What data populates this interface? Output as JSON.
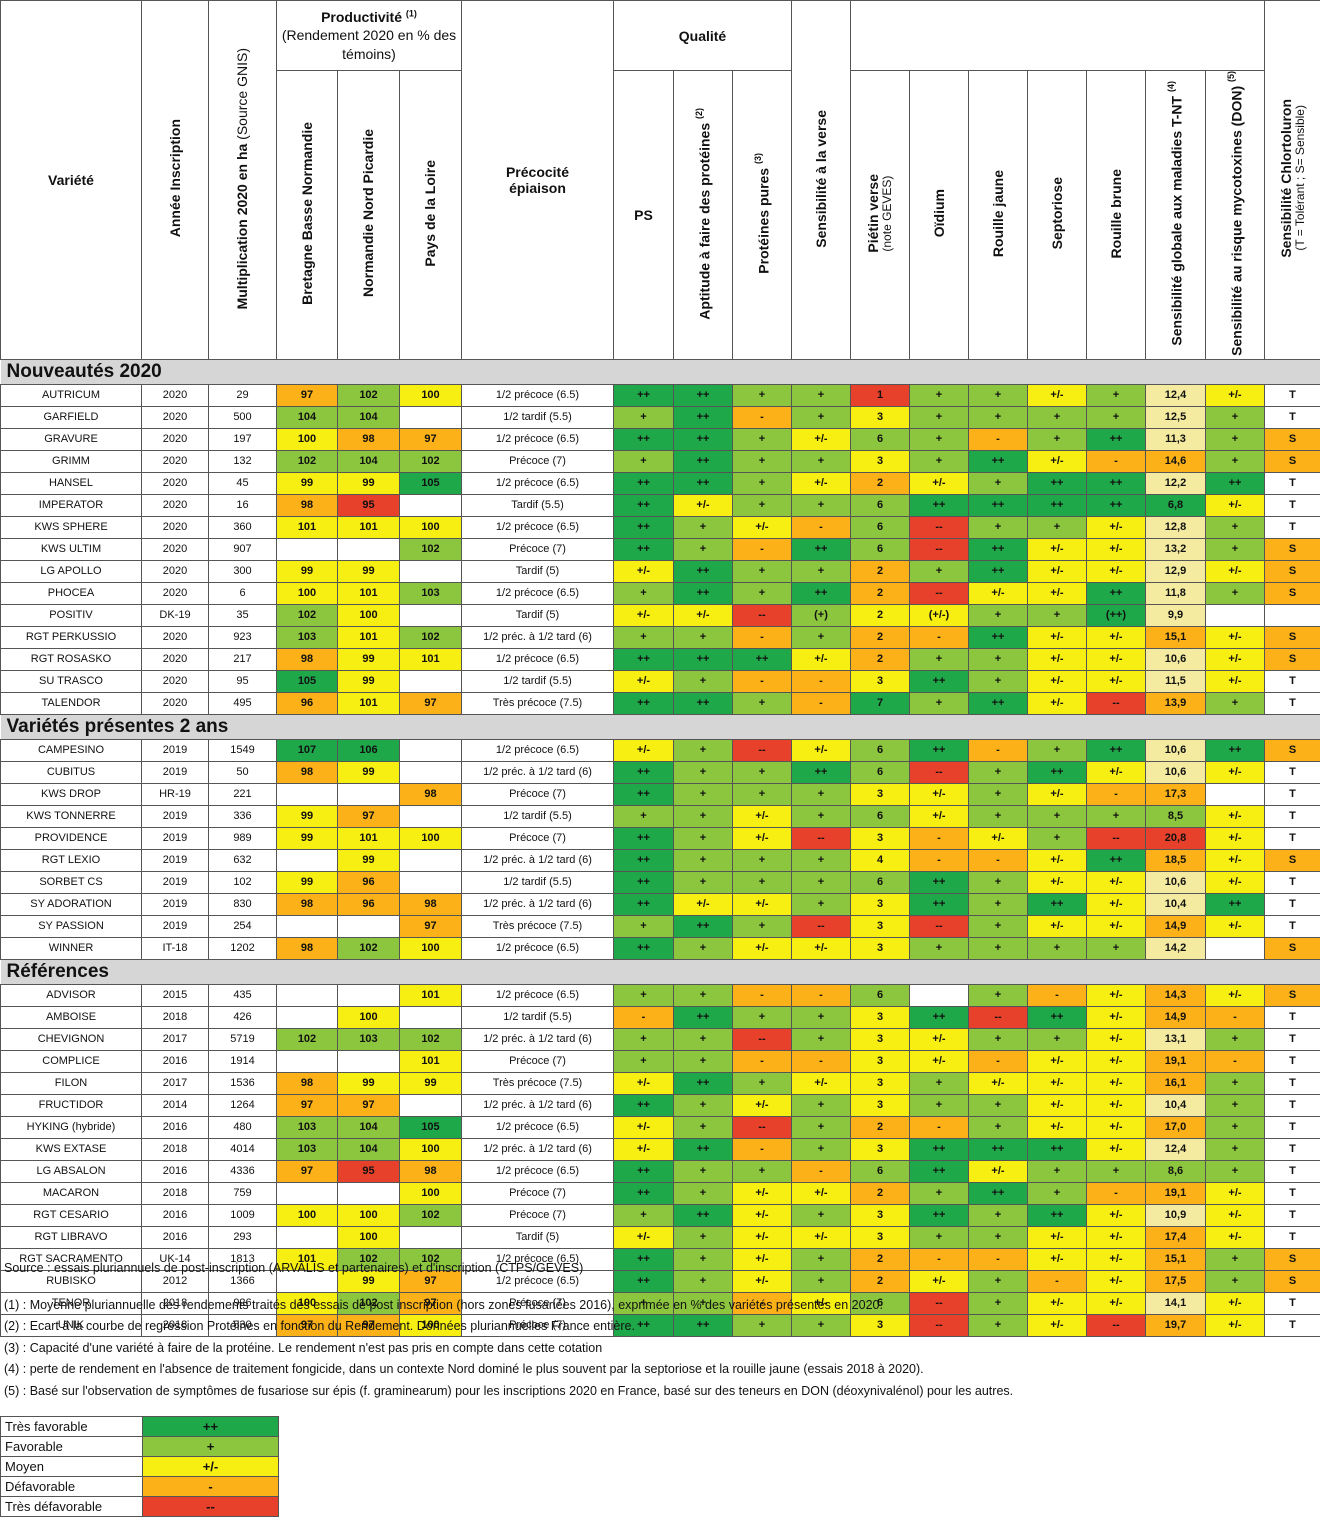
{
  "header": {
    "variete": "Variété",
    "annee": "Année Inscription",
    "multiplication": "Multiplication 2020 en ha",
    "multiplication_src": "(Source GNIS)",
    "productivite": "Productivité",
    "productivite_note": "(1)",
    "productivite_sub": "(Rendement 2020 en % des témoins)",
    "bretagne": "Bretagne Basse Normandie",
    "normandie": "Normandie Nord Picardie",
    "pays_loire": "Pays de la Loire",
    "precocite": "Précocité épiaison",
    "qualite": "Qualité",
    "ps": "PS",
    "aptitude": "Aptitude à faire des protéines",
    "aptitude_note": "(2)",
    "proteines": "Protéines pures",
    "proteines_note": "(3)",
    "verse": "Sensibilité à la verse",
    "pietin": "Piétin verse",
    "pietin_note": "(note GEVES)",
    "oidium": "Oïdium",
    "rouille_jaune": "Rouille jaune",
    "septoriose": "Septoriose",
    "rouille_brune": "Rouille brune",
    "sens_globale": "Sensibilité globale aux maladies T-NT",
    "sens_globale_note": "(4)",
    "mycotoxines": "Sensibilité au risque mycotoxines (DON)",
    "mycotoxines_note": "(5)",
    "chlortoluron": "Sensibilité Chlortoluron",
    "chlortoluron_sub": "(T = Tolérant ; S= Sensible)"
  },
  "legend_colors": {
    "dg": "#1fa84a",
    "lg": "#8cc63e",
    "yl": "#f7ee12",
    "or": "#fbb117",
    "rd": "#e8412b",
    "pe": "#f4eba0"
  },
  "sections": [
    {
      "title": "Nouveautés 2020",
      "rows": [
        [
          "AUTRICUM",
          "2020",
          "29",
          "97:or",
          "102:lg",
          "100:yl",
          "1/2 précoce (6.5)",
          "++:dg",
          "++:dg",
          "+:lg",
          "+:lg",
          "1:rd",
          "+:lg",
          "+:lg",
          "+/-:yl",
          "+:lg",
          "12,4:pe",
          "+/-:yl",
          "T:wh"
        ],
        [
          "GARFIELD",
          "2020",
          "500",
          "104:lg",
          "104:lg",
          ":wh",
          "1/2 tardif (5.5)",
          "+:lg",
          "++:dg",
          "-:or",
          "+:lg",
          "3:yl",
          "+:lg",
          "+:lg",
          "+:lg",
          "+:lg",
          "12,5:pe",
          "+:lg",
          "T:wh"
        ],
        [
          "GRAVURE",
          "2020",
          "197",
          "100:yl",
          "98:or",
          "97:or",
          "1/2 précoce (6.5)",
          "++:dg",
          "++:dg",
          "+:lg",
          "+/-:yl",
          "6:lg",
          "+:lg",
          "-:or",
          "+:lg",
          "++:dg",
          "11,3:pe",
          "+:lg",
          "S:or"
        ],
        [
          "GRIMM",
          "2020",
          "132",
          "102:lg",
          "104:lg",
          "102:lg",
          "Précoce (7)",
          "+:lg",
          "++:dg",
          "+:lg",
          "+:lg",
          "3:yl",
          "+:lg",
          "++:dg",
          "+/-:yl",
          "-:or",
          "14,6:or",
          "+:lg",
          "S:or"
        ],
        [
          "HANSEL",
          "2020",
          "45",
          "99:yl",
          "99:yl",
          "105:dg",
          "1/2 précoce (6.5)",
          "++:dg",
          "++:dg",
          "+:lg",
          "+/-:yl",
          "2:or",
          "+/-:yl",
          "+:lg",
          "++:dg",
          "++:dg",
          "12,2:pe",
          "++:dg",
          "T:wh"
        ],
        [
          "IMPERATOR",
          "2020",
          "16",
          "98:or",
          "95:rd",
          ":wh",
          "Tardif (5.5)",
          "++:dg",
          "+/-:yl",
          "+:lg",
          "+:lg",
          "6:lg",
          "++:dg",
          "++:dg",
          "++:dg",
          "++:dg",
          "6,8:dg",
          "+/-:yl",
          "T:wh"
        ],
        [
          "KWS SPHERE",
          "2020",
          "360",
          "101:yl",
          "101:yl",
          "100:yl",
          "1/2 précoce (6.5)",
          "++:dg",
          "+:lg",
          "+/-:yl",
          "-:or",
          "6:lg",
          "--:rd",
          "+:lg",
          "+:lg",
          "+/-:yl",
          "12,8:pe",
          "+:lg",
          "T:wh"
        ],
        [
          "KWS ULTIM",
          "2020",
          "907",
          ":wh",
          ":wh",
          "102:lg",
          "Précoce (7)",
          "++:dg",
          "+:lg",
          "-:or",
          "++:dg",
          "6:lg",
          "--:rd",
          "++:dg",
          "+/-:yl",
          "+/-:yl",
          "13,2:pe",
          "+:lg",
          "S:or"
        ],
        [
          "LG APOLLO",
          "2020",
          "300",
          "99:yl",
          "99:yl",
          ":wh",
          "Tardif (5)",
          "+/-:yl",
          "++:dg",
          "+:lg",
          "+:lg",
          "2:or",
          "+:lg",
          "++:dg",
          "+/-:yl",
          "+/-:yl",
          "12,9:pe",
          "+/-:yl",
          "S:or"
        ],
        [
          "PHOCEA",
          "2020",
          "6",
          "100:yl",
          "101:yl",
          "103:lg",
          "1/2 précoce (6.5)",
          "+:lg",
          "++:dg",
          "+:lg",
          "++:dg",
          "2:or",
          "--:rd",
          "+/-:yl",
          "+/-:yl",
          "++:dg",
          "11,8:pe",
          "+:lg",
          "S:or"
        ],
        [
          "POSITIV",
          "DK-19",
          "35",
          "102:lg",
          "100:yl",
          ":wh",
          "Tardif (5)",
          "+/-:yl",
          "+/-:yl",
          "--:rd",
          "(+):lg",
          "2:yl",
          "(+/-):yl",
          "+:lg",
          "+:lg",
          "(++):dg",
          "9,9:pe",
          ":wh",
          ":wh"
        ],
        [
          "RGT PERKUSSIO",
          "2020",
          "923",
          "103:lg",
          "101:yl",
          "102:lg",
          "1/2 préc. à 1/2 tard (6)",
          "+:lg",
          "+:lg",
          "-:or",
          "+:lg",
          "2:or",
          "-:or",
          "++:dg",
          "+/-:yl",
          "+/-:yl",
          "15,1:or",
          "+/-:yl",
          "S:or"
        ],
        [
          "RGT ROSASKO",
          "2020",
          "217",
          "98:or",
          "99:yl",
          "101:yl",
          "1/2 précoce (6.5)",
          "++:dg",
          "++:dg",
          "++:dg",
          "+/-:yl",
          "2:or",
          "+:lg",
          "+:lg",
          "+/-:yl",
          "+/-:yl",
          "10,6:pe",
          "+/-:yl",
          "S:or"
        ],
        [
          "SU TRASCO",
          "2020",
          "95",
          "105:dg",
          "99:yl",
          ":wh",
          "1/2 tardif (5.5)",
          "+/-:yl",
          "+:lg",
          "-:or",
          "-:or",
          "3:yl",
          "++:dg",
          "+:lg",
          "+/-:yl",
          "+/-:yl",
          "11,5:pe",
          "+/-:yl",
          "T:wh"
        ],
        [
          "TALENDOR",
          "2020",
          "495",
          "96:or",
          "101:yl",
          "97:or",
          "Très précoce (7.5)",
          "++:dg",
          "++:dg",
          "+:lg",
          "-:or",
          "7:dg",
          "+:lg",
          "++:dg",
          "+/-:yl",
          "--:rd",
          "13,9:or",
          "+:lg",
          "T:wh"
        ]
      ]
    },
    {
      "title": "Variétés présentes 2 ans",
      "rows": [
        [
          "CAMPESINO",
          "2019",
          "1549",
          "107:dg",
          "106:dg",
          ":wh",
          "1/2 précoce (6.5)",
          "+/-:yl",
          "+:lg",
          "--:rd",
          "+/-:yl",
          "6:lg",
          "++:dg",
          "-:or",
          "+:lg",
          "++:dg",
          "10,6:pe",
          "++:dg",
          "S:or"
        ],
        [
          "CUBITUS",
          "2019",
          "50",
          "98:or",
          "99:yl",
          ":wh",
          "1/2 préc. à 1/2 tard (6)",
          "++:dg",
          "+:lg",
          "+:lg",
          "++:dg",
          "6:lg",
          "--:rd",
          "+:lg",
          "++:dg",
          "+/-:yl",
          "10,6:pe",
          "+/-:yl",
          "T:wh"
        ],
        [
          "KWS DROP",
          "HR-19",
          "221",
          ":wh",
          ":wh",
          "98:or",
          "Précoce (7)",
          "++:dg",
          "+:lg",
          "+:lg",
          "+:lg",
          "3:yl",
          "+/-:yl",
          "+:lg",
          "+/-:yl",
          "-:or",
          "17,3:or",
          ":wh",
          "T:wh"
        ],
        [
          "KWS TONNERRE",
          "2019",
          "336",
          "99:yl",
          "97:or",
          ":wh",
          "1/2 tardif (5.5)",
          "+:lg",
          "+:lg",
          "+/-:yl",
          "+:lg",
          "6:lg",
          "+/-:yl",
          "+:lg",
          "+:lg",
          "+:lg",
          "8,5:lg",
          "+/-:yl",
          "T:wh"
        ],
        [
          "PROVIDENCE",
          "2019",
          "989",
          "99:yl",
          "101:yl",
          "100:yl",
          "Précoce (7)",
          "++:dg",
          "+:lg",
          "+/-:yl",
          "--:rd",
          "3:yl",
          "-:or",
          "+/-:yl",
          "+:lg",
          "--:rd",
          "20,8:rd",
          "+/-:yl",
          "T:wh"
        ],
        [
          "RGT LEXIO",
          "2019",
          "632",
          ":wh",
          "99:yl",
          ":wh",
          "1/2 préc. à 1/2 tard (6)",
          "++:dg",
          "+:lg",
          "+:lg",
          "+:lg",
          "4:yl",
          "-:or",
          "-:or",
          "+/-:yl",
          "++:dg",
          "18,5:or",
          "+/-:yl",
          "S:or"
        ],
        [
          "SORBET CS",
          "2019",
          "102",
          "99:yl",
          "96:or",
          ":wh",
          "1/2 tardif (5.5)",
          "++:dg",
          "+:lg",
          "+:lg",
          "+:lg",
          "6:lg",
          "++:dg",
          "+:lg",
          "+/-:yl",
          "+/-:yl",
          "10,6:pe",
          "+/-:yl",
          "T:wh"
        ],
        [
          "SY ADORATION",
          "2019",
          "830",
          "98:or",
          "96:or",
          "98:or",
          "1/2 préc. à 1/2 tard (6)",
          "++:dg",
          "+/-:yl",
          "+/-:yl",
          "+:lg",
          "3:yl",
          "++:dg",
          "+:lg",
          "++:dg",
          "+/-:yl",
          "10,4:pe",
          "++:dg",
          "T:wh"
        ],
        [
          "SY PASSION",
          "2019",
          "254",
          ":wh",
          ":wh",
          "97:or",
          "Très précoce (7.5)",
          "+:lg",
          "++:dg",
          "+:lg",
          "--:rd",
          "3:yl",
          "--:rd",
          "+:lg",
          "+/-:yl",
          "+/-:yl",
          "14,9:or",
          "+/-:yl",
          "T:wh"
        ],
        [
          "WINNER",
          "IT-18",
          "1202",
          "98:or",
          "102:lg",
          "100:yl",
          "1/2 précoce (6.5)",
          "++:dg",
          "+:lg",
          "+/-:yl",
          "+/-:yl",
          "3:yl",
          "+:lg",
          "+:lg",
          "+:lg",
          "+:lg",
          "14,2:pe",
          ":wh",
          "S:or"
        ]
      ]
    },
    {
      "title": "Références",
      "rows": [
        [
          "ADVISOR",
          "2015",
          "435",
          ":wh",
          ":wh",
          "101:yl",
          "1/2 précoce (6.5)",
          "+:lg",
          "+:lg",
          "-:or",
          "-:or",
          "6:lg",
          ":wh",
          "+:lg",
          "-:or",
          "+/-:yl",
          "14,3:or",
          "+/-:yl",
          "S:or"
        ],
        [
          "AMBOISE",
          "2018",
          "426",
          ":wh",
          "100:yl",
          ":wh",
          "1/2 tardif (5.5)",
          "-:or",
          "++:dg",
          "+:lg",
          "+:lg",
          "3:yl",
          "++:dg",
          "--:rd",
          "++:dg",
          "+/-:yl",
          "14,9:or",
          "-:or",
          "T:wh"
        ],
        [
          "CHEVIGNON",
          "2017",
          "5719",
          "102:lg",
          "103:lg",
          "102:lg",
          "1/2 préc. à 1/2 tard (6)",
          "+:lg",
          "+:lg",
          "--:rd",
          "+:lg",
          "3:yl",
          "+/-:yl",
          "+:lg",
          "+:lg",
          "+/-:yl",
          "13,1:pe",
          "+:lg",
          "T:wh"
        ],
        [
          "COMPLICE",
          "2016",
          "1914",
          ":wh",
          ":wh",
          "101:yl",
          "Précoce (7)",
          "+:lg",
          "+:lg",
          "-:or",
          "-:or",
          "3:yl",
          "+/-:yl",
          "-:or",
          "+/-:yl",
          "+/-:yl",
          "19,1:or",
          "-:or",
          "T:wh"
        ],
        [
          "FILON",
          "2017",
          "1536",
          "98:or",
          "99:yl",
          "99:yl",
          "Très précoce (7.5)",
          "+/-:yl",
          "++:dg",
          "+:lg",
          "+/-:yl",
          "3:yl",
          "+:lg",
          "+/-:yl",
          "+/-:yl",
          "+/-:yl",
          "16,1:or",
          "+:lg",
          "T:wh"
        ],
        [
          "FRUCTIDOR",
          "2014",
          "1264",
          "97:or",
          "97:or",
          ":wh",
          "1/2 préc. à 1/2 tard (6)",
          "++:dg",
          "+:lg",
          "+/-:yl",
          "+:lg",
          "3:yl",
          "+:lg",
          "+:lg",
          "+/-:yl",
          "+/-:yl",
          "10,4:pe",
          "+:lg",
          "T:wh"
        ],
        [
          "HYKING (hybride)",
          "2016",
          "480",
          "103:lg",
          "104:lg",
          "105:dg",
          "1/2 précoce (6.5)",
          "+/-:yl",
          "+:lg",
          "--:rd",
          "+:lg",
          "2:or",
          "-:or",
          "+:lg",
          "+/-:yl",
          "+/-:yl",
          "17,0:or",
          "+:lg",
          "T:wh"
        ],
        [
          "KWS EXTASE",
          "2018",
          "4014",
          "103:lg",
          "104:lg",
          "100:yl",
          "1/2 préc. à 1/2 tard (6)",
          "+/-:yl",
          "++:dg",
          "-:or",
          "+:lg",
          "3:yl",
          "++:dg",
          "++:dg",
          "++:dg",
          "+/-:yl",
          "12,4:pe",
          "+:lg",
          "T:wh"
        ],
        [
          "LG ABSALON",
          "2016",
          "4336",
          "97:or",
          "95:rd",
          "98:or",
          "1/2 précoce (6.5)",
          "++:dg",
          "+:lg",
          "+:lg",
          "-:or",
          "6:lg",
          "++:dg",
          "+/-:yl",
          "+:lg",
          "+:lg",
          "8,6:lg",
          "+:lg",
          "T:wh"
        ],
        [
          "MACARON",
          "2018",
          "759",
          ":wh",
          ":wh",
          "100:yl",
          "Précoce (7)",
          "++:dg",
          "+:lg",
          "+/-:yl",
          "+/-:yl",
          "2:or",
          "+:lg",
          "++:dg",
          "+:lg",
          "-:or",
          "19,1:or",
          "+/-:yl",
          "T:wh"
        ],
        [
          "RGT CESARIO",
          "2016",
          "1009",
          "100:yl",
          "100:yl",
          "102:lg",
          "Précoce (7)",
          "+:lg",
          "++:dg",
          "+/-:yl",
          "+:lg",
          "3:yl",
          "++:dg",
          "+:lg",
          "++:dg",
          "+/-:yl",
          "10,9:pe",
          "+/-:yl",
          "T:wh"
        ],
        [
          "RGT LIBRAVO",
          "2016",
          "293",
          ":wh",
          "100:yl",
          ":wh",
          "Tardif (5)",
          "+/-:yl",
          "+:lg",
          "+/-:yl",
          "+/-:yl",
          "3:yl",
          "+:lg",
          "+:lg",
          "+/-:yl",
          "+/-:yl",
          "17,4:or",
          "+/-:yl",
          "T:wh"
        ],
        [
          "RGT SACRAMENTO",
          "UK-14",
          "1813",
          "101:yl",
          "102:lg",
          "102:lg",
          "1/2 précoce (6.5)",
          "++:dg",
          "+:lg",
          "+/-:yl",
          "+:lg",
          "2:or",
          "-:or",
          "-:or",
          "+/-:yl",
          "+/-:yl",
          "15,1:or",
          "+:lg",
          "S:or"
        ],
        [
          "RUBISKO",
          "2012",
          "1366",
          ":wh",
          "99:yl",
          "97:or",
          "1/2 précoce (6.5)",
          "++:dg",
          "+:lg",
          "+/-:yl",
          "+:lg",
          "2:or",
          "+/-:yl",
          "+:lg",
          "-:or",
          "+/-:yl",
          "17,5:or",
          "+:lg",
          "S:or"
        ],
        [
          "TENOR",
          "2018",
          "926",
          "100:yl",
          "102:lg",
          "97:or",
          "Précoce (7)",
          "+:lg",
          "+:lg",
          "-:or",
          "+/-:yl",
          "6:lg",
          "--:rd",
          "+:lg",
          "+/-:yl",
          "+/-:yl",
          "14,1:pe",
          "+/-:yl",
          "T:wh"
        ],
        [
          "UNIK",
          "2018",
          "830",
          "97:or",
          "97:or",
          "100:yl",
          "Précoce (7)",
          "++:dg",
          "++:dg",
          "+:lg",
          "+:lg",
          "3:yl",
          "--:rd",
          "+:lg",
          "+/-:yl",
          "--:rd",
          "19,7:or",
          "+/-:yl",
          "T:wh"
        ]
      ]
    }
  ],
  "footer": {
    "source": "Source : essais pluriannuels de post-inscription (ARVALIS et partenaires) et d'inscription (CTPS/GEVES)",
    "notes": [
      "(1) : Moyenne pluriannuelle des rendements traités des essais de post inscription (hors zones fusariées 2016), exprimée en % des variétés présentes en 2020.",
      "(2) : Ecart à la courbe de regression Protéines en fonction du Rendement. Données pluriannuelles France entière.",
      "(3) : Capacité d'une variété à faire de la protéine. Le rendement n'est pas pris en compte dans cette cotation",
      "(4) : perte de rendement en l'absence de traitement fongicide, dans un contexte Nord dominé le plus souvent par la septoriose et la rouille jaune (essais 2018 à 2020).",
      "(5) : Basé sur l'observation de symptômes de fusariose sur épis (f. graminearum) pour les inscriptions 2020 en France,  basé sur des teneurs en DON (déoxynivalénol) pour les autres."
    ]
  },
  "legend": [
    {
      "label": "Très favorable",
      "symbol": "++",
      "cls": "dg"
    },
    {
      "label": "Favorable",
      "symbol": "+",
      "cls": "lg"
    },
    {
      "label": "Moyen",
      "symbol": "+/-",
      "cls": "yl"
    },
    {
      "label": "Défavorable",
      "symbol": "-",
      "cls": "or"
    },
    {
      "label": "Très défavorable",
      "symbol": "--",
      "cls": "rd"
    }
  ]
}
